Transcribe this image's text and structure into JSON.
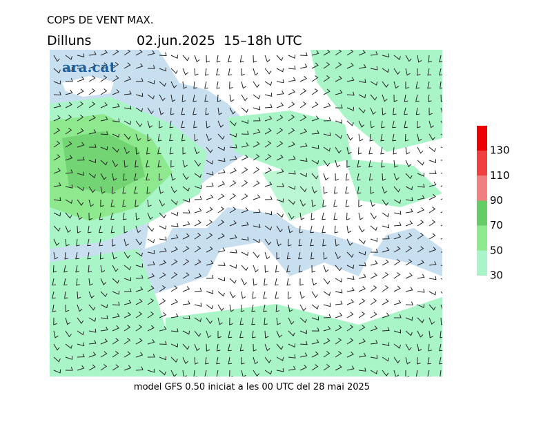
{
  "header": {
    "title": "COPS DE VENT MAX.",
    "day": "Dilluns",
    "date": "02.jun.2025  15–18h UTC"
  },
  "logo": "ara.cat",
  "footer": "model GFS 0.50 iniciat a les 00 UTC del 28 mai 2025",
  "colorbar": {
    "ticks": [
      30,
      50,
      70,
      90,
      110,
      130
    ],
    "colors": [
      "#aaf5c8",
      "#8ee88e",
      "#66cc66",
      "#f08080",
      "#f04040",
      "#ee0000"
    ]
  }
}
